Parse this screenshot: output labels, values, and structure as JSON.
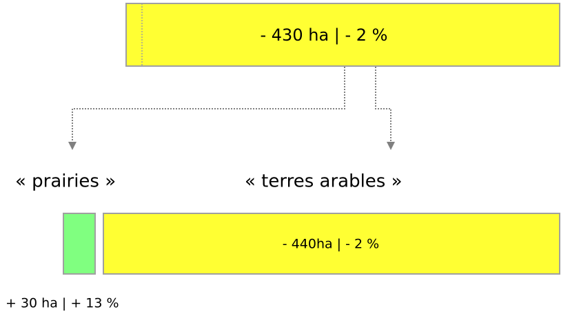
{
  "top": {
    "label": "- 430 ha | - 2 %"
  },
  "branches": [
    {
      "label": "« prairies »",
      "change": "+ 30 ha | + 13 %"
    },
    {
      "label": "« terres arables »",
      "change": "- 440ha | - 2 %"
    }
  ]
}
